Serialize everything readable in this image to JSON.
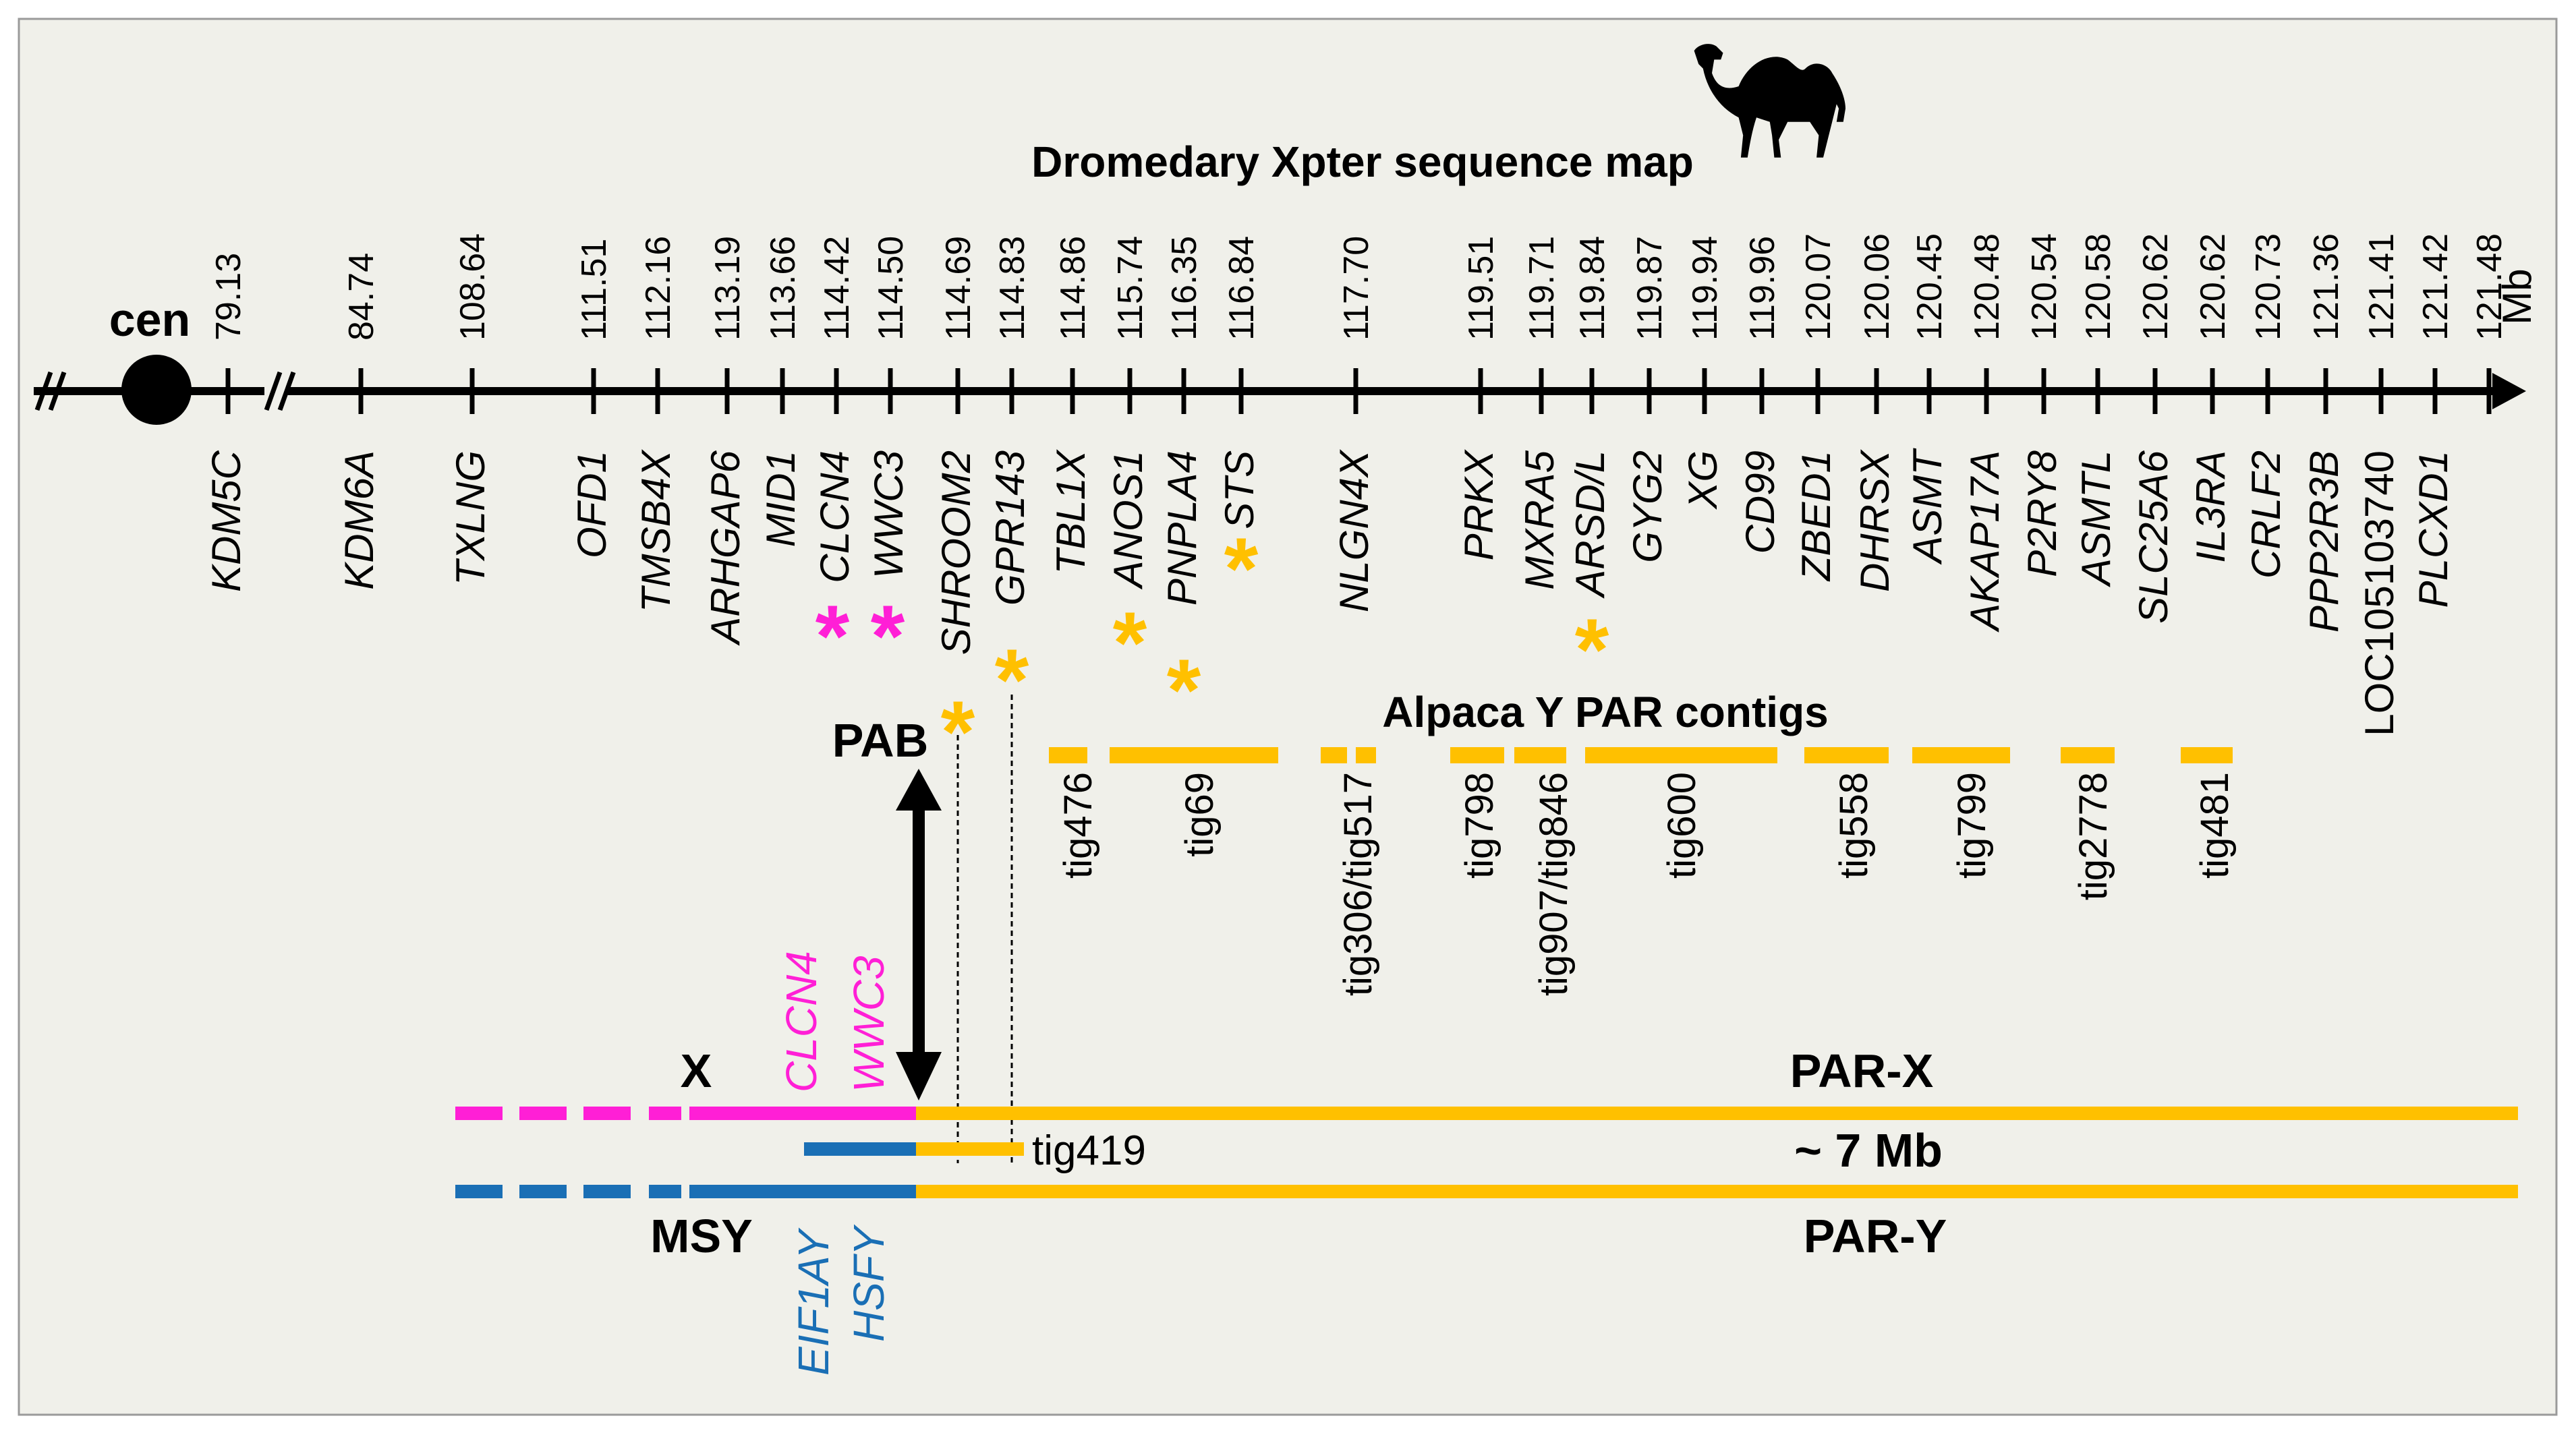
{
  "title": "Dromedary Xpter sequence map",
  "centromere_label": "cen",
  "unit_label": "Mb",
  "colors": {
    "magenta": "#FF1FD6",
    "gold": "#FFC000",
    "blue": "#1A6FB5",
    "background": "#F0F0EA",
    "black": "#000000"
  },
  "markers": [
    {
      "pos": "79.13",
      "gene": "KDM5C",
      "italic": true,
      "star": null
    },
    {
      "pos": "84.74",
      "gene": "KDM6A",
      "italic": true,
      "star": null
    },
    {
      "pos": "108.64",
      "gene": "TXLNG",
      "italic": true,
      "star": null
    },
    {
      "pos": "111.51",
      "gene": "OFD1",
      "italic": true,
      "star": null
    },
    {
      "pos": "112.16",
      "gene": "TMSB4X",
      "italic": true,
      "star": null
    },
    {
      "pos": "113.19",
      "gene": "ARHGAP6",
      "italic": true,
      "star": null
    },
    {
      "pos": "113.66",
      "gene": "MID1",
      "italic": true,
      "star": null
    },
    {
      "pos": "114.42",
      "gene": "CLCN4",
      "italic": true,
      "star": "magenta"
    },
    {
      "pos": "114.50",
      "gene": "WWC3",
      "italic": true,
      "star": "magenta"
    },
    {
      "pos": "114.69",
      "gene": "SHROOM2",
      "italic": true,
      "star": "gold"
    },
    {
      "pos": "114.83",
      "gene": "GPR143",
      "italic": true,
      "star": "gold"
    },
    {
      "pos": "114.86",
      "gene": "TBL1X",
      "italic": true,
      "star": null
    },
    {
      "pos": "115.74",
      "gene": "ANOS1",
      "italic": true,
      "star": "gold"
    },
    {
      "pos": "116.35",
      "gene": "PNPLA4",
      "italic": true,
      "star": "gold"
    },
    {
      "pos": "116.84",
      "gene": "STS",
      "italic": true,
      "star": "gold"
    },
    {
      "pos": "117.70",
      "gene": "NLGN4X",
      "italic": true,
      "star": null
    },
    {
      "pos": "119.51",
      "gene": "PRKX",
      "italic": true,
      "star": null
    },
    {
      "pos": "119.71",
      "gene": "MXRA5",
      "italic": true,
      "star": null
    },
    {
      "pos": "119.84",
      "gene": "ARSD/L",
      "italic": true,
      "star": "gold"
    },
    {
      "pos": "119.87",
      "gene": "GYG2",
      "italic": true,
      "star": null
    },
    {
      "pos": "119.94",
      "gene": "XG",
      "italic": true,
      "star": null
    },
    {
      "pos": "119.96",
      "gene": "CD99",
      "italic": true,
      "star": null
    },
    {
      "pos": "120.07",
      "gene": "ZBED1",
      "italic": true,
      "star": null
    },
    {
      "pos": "120.06",
      "gene": "DHRSX",
      "italic": true,
      "star": null
    },
    {
      "pos": "120.45",
      "gene": "ASMT",
      "italic": true,
      "star": null
    },
    {
      "pos": "120.48",
      "gene": "AKAP17A",
      "italic": true,
      "star": null
    },
    {
      "pos": "120.54",
      "gene": "P2RY8",
      "italic": true,
      "star": null
    },
    {
      "pos": "120.58",
      "gene": "ASMTL",
      "italic": true,
      "star": null
    },
    {
      "pos": "120.62",
      "gene": "SLC25A6",
      "italic": true,
      "star": null
    },
    {
      "pos": "120.62",
      "gene": "IL3RA",
      "italic": true,
      "star": null
    },
    {
      "pos": "120.73",
      "gene": "CRLF2",
      "italic": true,
      "star": null
    },
    {
      "pos": "121.36",
      "gene": "PPP2R3B",
      "italic": true,
      "star": null
    },
    {
      "pos": "121.41",
      "gene": "LOC105103740",
      "italic": false,
      "star": null
    },
    {
      "pos": "121.42",
      "gene": "PLCXD1",
      "italic": true,
      "star": null
    },
    {
      "pos": "121.48",
      "gene": "",
      "italic": true,
      "star": null
    }
  ],
  "contigs_title": "Alpaca Y PAR contigs",
  "contigs": [
    "tig476",
    "tig69",
    "tig306/tig517",
    "tig798",
    "tig907/tig846",
    "tig600",
    "tig558",
    "tig799",
    "tig2778",
    "tig481"
  ],
  "pab_label": "PAB",
  "x_genes": [
    "CLCN4",
    "WWC3"
  ],
  "y_genes": [
    "EIF1AY",
    "HSFY"
  ],
  "x_label": "X",
  "par_x_label": "PAR-X",
  "tig419_label": "tig419",
  "size_label": "~ 7 Mb",
  "msy_label": "MSY",
  "par_y_label": "PAR-Y"
}
